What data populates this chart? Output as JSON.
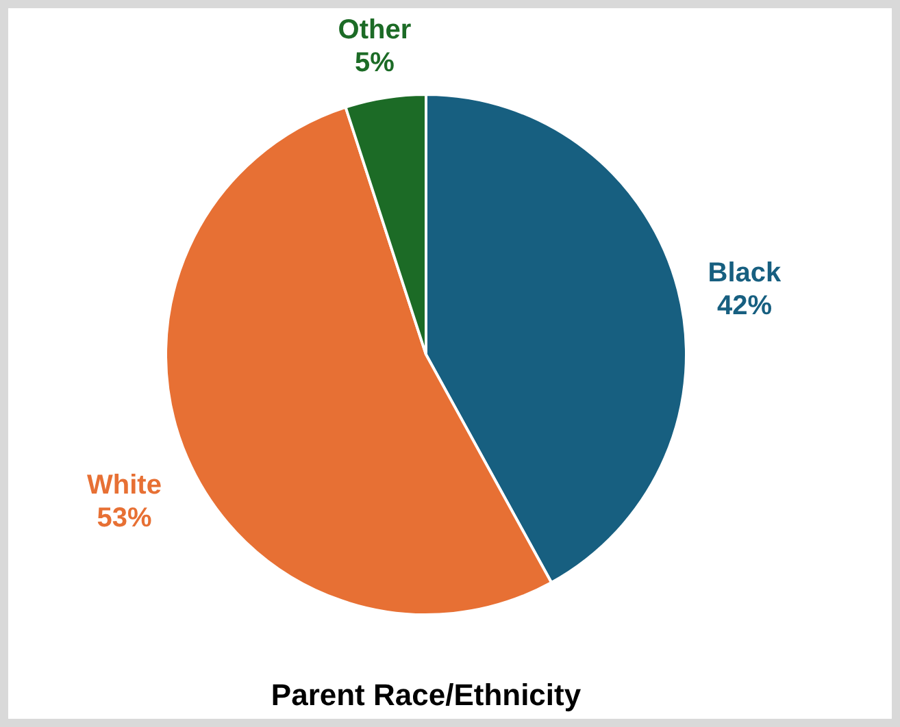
{
  "chart_data": {
    "type": "pie",
    "title": "Parent Race/Ethnicity",
    "categories": [
      "Black",
      "White",
      "Other"
    ],
    "values": [
      42,
      53,
      5
    ],
    "value_labels": [
      "42%",
      "53%",
      "5%"
    ],
    "colors": [
      "#175f80",
      "#e77034",
      "#1c6b26"
    ],
    "legend": false
  }
}
